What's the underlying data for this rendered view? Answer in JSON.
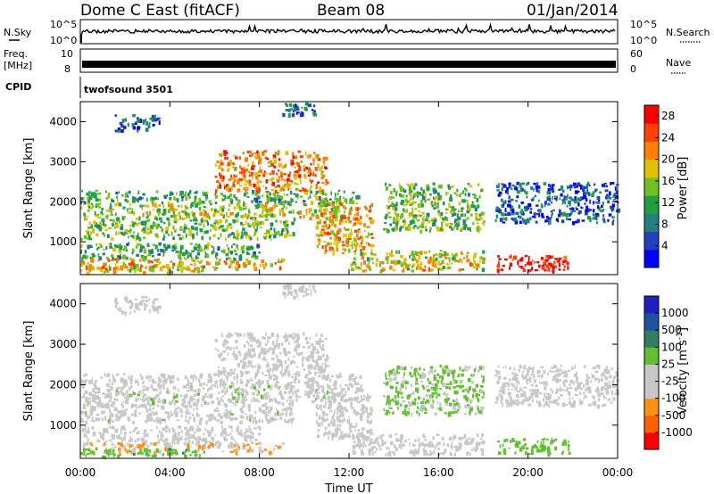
{
  "header": {
    "station": "Dome C East (fitACF)",
    "beam": "Beam 08",
    "date": "01/Jan/2014"
  },
  "side_labels": {
    "nsky": "N.Sky",
    "freq_top": "Freq.",
    "freq_unit": "[MHz]",
    "cpid": "CPID",
    "nsearch": "N.Search",
    "nave": "Nave"
  },
  "noise_panel": {
    "left_ticks": [
      "10^5",
      "10^0"
    ],
    "right_ticks": [
      "10^5",
      "10^0"
    ]
  },
  "freq_panel": {
    "left_ticks": [
      "10",
      "8"
    ],
    "right_ticks": [
      "60",
      "0"
    ]
  },
  "cpid_text": "twofsound 3501",
  "xaxis": {
    "label": "Time UT",
    "ticks": [
      "00:00",
      "04:00",
      "08:00",
      "12:00",
      "16:00",
      "20:00",
      "00:00"
    ]
  },
  "power_panel": {
    "ylabel": "Slant Range [km]",
    "yticks": [
      "4000",
      "3000",
      "2000",
      "1000"
    ],
    "colorbar_label": "Power [dB]",
    "colorbar_ticks": [
      "28",
      "24",
      "20",
      "16",
      "12",
      "8",
      "4"
    ]
  },
  "velocity_panel": {
    "ylabel": "Slant Range [km]",
    "yticks": [
      "4000",
      "3000",
      "2000",
      "1000"
    ],
    "colorbar_label": "Velocity [m s",
    "colorbar_label_sup": "-1",
    "colorbar_label_end": "]",
    "colorbar_ticks": [
      "1000",
      "500",
      "100",
      "25",
      "-25",
      "-100",
      "-500",
      "-1000"
    ]
  },
  "chart_data": {
    "type": "heatmap",
    "title": "Dome C East (fitACF)   Beam 08   01/Jan/2014",
    "xlabel": "Time UT",
    "ylabel": "Slant Range [km]",
    "xlim_hours": [
      0,
      24
    ],
    "ylim_km": [
      180,
      4500
    ],
    "power_scale_dB": [
      0,
      30
    ],
    "velocity_scale_ms": [
      -1000,
      1000
    ],
    "power_colors": [
      "#0000ff",
      "#2040c0",
      "#208080",
      "#20a040",
      "#70c020",
      "#e0c000",
      "#ff8000",
      "#ff4000",
      "#ff0000"
    ],
    "velocity_colors": [
      "#ff0000",
      "#ff6000",
      "#ff9010",
      "#c8c8c8",
      "#c8c8c8",
      "#60c030",
      "#308060",
      "#2050a0",
      "#2020c0"
    ],
    "regions": [
      {
        "t": [
          0.0,
          12.5
        ],
        "r": [
          2000,
          2300
        ],
        "power": 12,
        "velocity": 0
      },
      {
        "t": [
          0.0,
          12.0
        ],
        "r": [
          1600,
          2000
        ],
        "power": 16,
        "velocity": 20
      },
      {
        "t": [
          0.0,
          9.5
        ],
        "r": [
          1100,
          1600
        ],
        "power": 14,
        "velocity": 10
      },
      {
        "t": [
          0.0,
          8.0
        ],
        "r": [
          600,
          1000
        ],
        "power": 12,
        "velocity": -150
      },
      {
        "t": [
          0.0,
          9.0
        ],
        "r": [
          350,
          600
        ],
        "power": 20,
        "velocity": -300
      },
      {
        "t": [
          0.0,
          5.5
        ],
        "r": [
          250,
          450
        ],
        "power": 18,
        "velocity": 250
      },
      {
        "t": [
          6.0,
          11.0
        ],
        "r": [
          2300,
          3300
        ],
        "power": 22,
        "velocity": -200
      },
      {
        "t": [
          10.5,
          13.0
        ],
        "r": [
          700,
          2000
        ],
        "power": 20,
        "velocity": -200
      },
      {
        "t": [
          13.5,
          18.0
        ],
        "r": [
          1300,
          2500
        ],
        "power": 14,
        "velocity": 150
      },
      {
        "t": [
          12.0,
          18.0
        ],
        "r": [
          300,
          800
        ],
        "power": 18,
        "velocity": -80
      },
      {
        "t": [
          18.5,
          21.8
        ],
        "r": [
          300,
          700
        ],
        "power": 28,
        "velocity": 200
      },
      {
        "t": [
          18.5,
          24.0
        ],
        "r": [
          1500,
          2500
        ],
        "power": 6,
        "velocity": 0
      },
      {
        "t": [
          1.5,
          3.5
        ],
        "r": [
          3800,
          4200
        ],
        "power": 6,
        "velocity": 0
      },
      {
        "t": [
          9.0,
          10.5
        ],
        "r": [
          4200,
          4500
        ],
        "power": 6,
        "velocity": 0
      }
    ]
  }
}
